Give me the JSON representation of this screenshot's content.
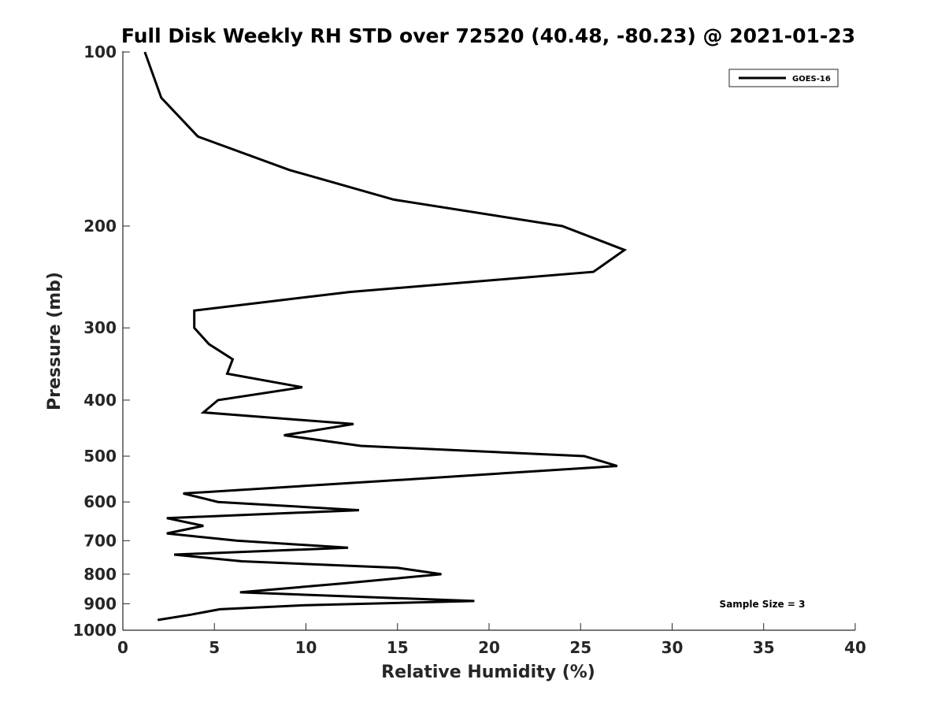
{
  "chart_data": {
    "type": "line",
    "title": "Full Disk Weekly RH STD over 72520 (40.48, -80.23) @ 2021-01-23",
    "xlabel": "Relative Humidity (%)",
    "ylabel": "Pressure (mb)",
    "xlim": [
      0,
      40
    ],
    "ylim": [
      100,
      1000
    ],
    "yscale": "log",
    "y_reversed": true,
    "x_ticks": [
      0,
      5,
      10,
      15,
      20,
      25,
      30,
      35,
      40
    ],
    "y_ticks": [
      100,
      200,
      300,
      400,
      500,
      600,
      700,
      800,
      900,
      1000
    ],
    "legend": {
      "position": "top-right",
      "entries": [
        "GOES-16"
      ]
    },
    "annotation": "Sample Size = 3",
    "series": [
      {
        "name": "GOES-16",
        "color": "#000000",
        "points": [
          [
            1.2,
            100
          ],
          [
            2.1,
            120
          ],
          [
            4.1,
            140
          ],
          [
            9.1,
            160
          ],
          [
            14.8,
            180
          ],
          [
            24.0,
            200
          ],
          [
            27.4,
            220
          ],
          [
            25.7,
            240
          ],
          [
            12.4,
            260
          ],
          [
            3.9,
            280
          ],
          [
            3.9,
            300
          ],
          [
            4.7,
            320
          ],
          [
            6.0,
            340
          ],
          [
            5.7,
            360
          ],
          [
            9.8,
            380
          ],
          [
            5.2,
            400
          ],
          [
            4.4,
            420
          ],
          [
            12.6,
            440
          ],
          [
            8.8,
            460
          ],
          [
            13.0,
            480
          ],
          [
            25.2,
            500
          ],
          [
            27.0,
            520
          ],
          [
            15.0,
            550
          ],
          [
            3.3,
            580
          ],
          [
            5.2,
            600
          ],
          [
            12.9,
            620
          ],
          [
            2.4,
            640
          ],
          [
            4.4,
            660
          ],
          [
            2.4,
            680
          ],
          [
            6.2,
            700
          ],
          [
            12.3,
            720
          ],
          [
            2.8,
            740
          ],
          [
            6.5,
            760
          ],
          [
            15.0,
            780
          ],
          [
            17.4,
            800
          ],
          [
            12.0,
            830
          ],
          [
            6.4,
            860
          ],
          [
            19.2,
            890
          ],
          [
            10.0,
            905
          ],
          [
            5.3,
            920
          ],
          [
            3.7,
            940
          ],
          [
            1.9,
            960
          ]
        ]
      }
    ]
  }
}
